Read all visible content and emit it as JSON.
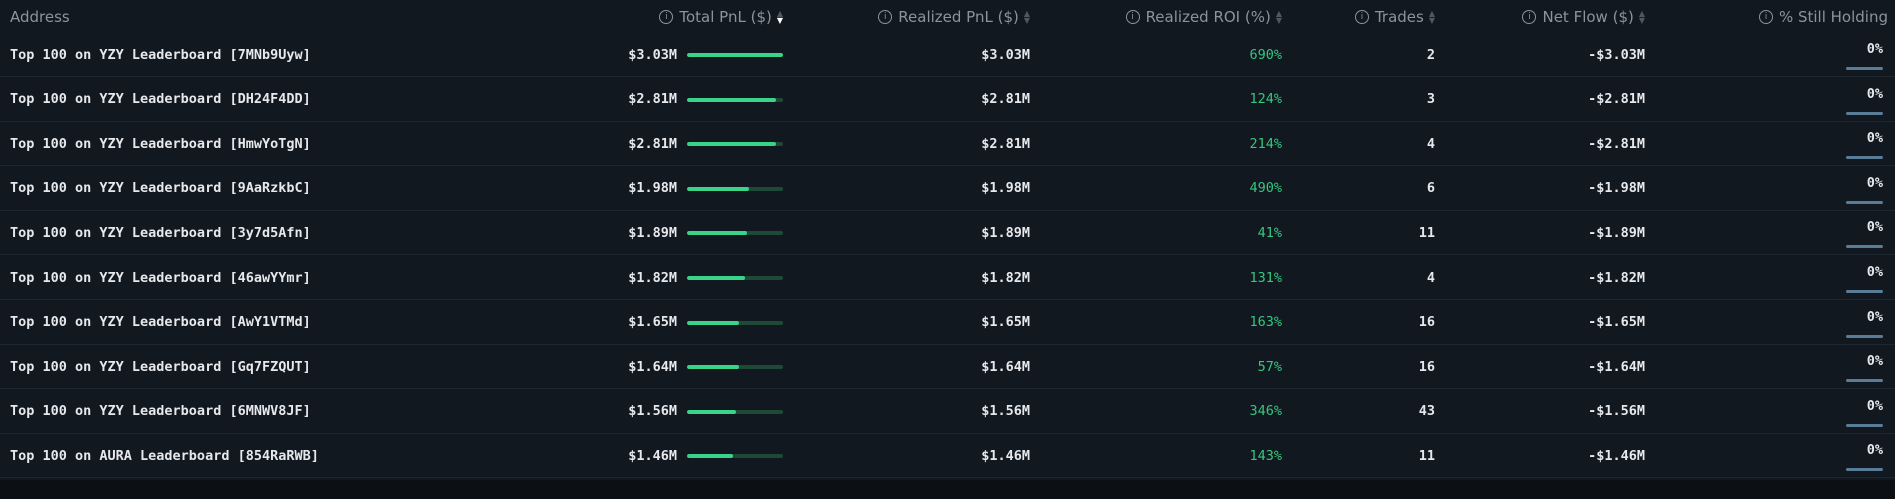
{
  "columns": {
    "address": "Address",
    "total_pnl": "Total PnL ($)",
    "realized_pnl": "Realized PnL ($)",
    "realized_roi": "Realized ROI (%)",
    "trades": "Trades",
    "net_flow": "Net Flow ($)",
    "still_holding": "% Still Holding"
  },
  "sort": {
    "column": "total_pnl",
    "direction": "desc"
  },
  "colors": {
    "bar_fill": "#3ad38a",
    "bar_track": "#1d4a36",
    "roi_text": "#35c77e",
    "holding_bar": "#5a7c96"
  },
  "rows": [
    {
      "address": "Top 100 on YZY Leaderboard [7MNb9Uyw]",
      "total_pnl": "$3.03M",
      "pnl_fraction": 1.0,
      "realized_pnl": "$3.03M",
      "roi": "690%",
      "trades": "2",
      "net_flow": "-$3.03M",
      "holding": "0%"
    },
    {
      "address": "Top 100 on YZY Leaderboard [DH24F4DD]",
      "total_pnl": "$2.81M",
      "pnl_fraction": 0.93,
      "realized_pnl": "$2.81M",
      "roi": "124%",
      "trades": "3",
      "net_flow": "-$2.81M",
      "holding": "0%"
    },
    {
      "address": "Top 100 on YZY Leaderboard [HmwYoTgN]",
      "total_pnl": "$2.81M",
      "pnl_fraction": 0.93,
      "realized_pnl": "$2.81M",
      "roi": "214%",
      "trades": "4",
      "net_flow": "-$2.81M",
      "holding": "0%"
    },
    {
      "address": "Top 100 on YZY Leaderboard [9AaRzkbC]",
      "total_pnl": "$1.98M",
      "pnl_fraction": 0.65,
      "realized_pnl": "$1.98M",
      "roi": "490%",
      "trades": "6",
      "net_flow": "-$1.98M",
      "holding": "0%"
    },
    {
      "address": "Top 100 on YZY Leaderboard [3y7d5Afn]",
      "total_pnl": "$1.89M",
      "pnl_fraction": 0.62,
      "realized_pnl": "$1.89M",
      "roi": "41%",
      "trades": "11",
      "net_flow": "-$1.89M",
      "holding": "0%"
    },
    {
      "address": "Top 100 on YZY Leaderboard [46awYYmr]",
      "total_pnl": "$1.82M",
      "pnl_fraction": 0.6,
      "realized_pnl": "$1.82M",
      "roi": "131%",
      "trades": "4",
      "net_flow": "-$1.82M",
      "holding": "0%"
    },
    {
      "address": "Top 100 on YZY Leaderboard [AwY1VTMd]",
      "total_pnl": "$1.65M",
      "pnl_fraction": 0.54,
      "realized_pnl": "$1.65M",
      "roi": "163%",
      "trades": "16",
      "net_flow": "-$1.65M",
      "holding": "0%"
    },
    {
      "address": "Top 100 on YZY Leaderboard [Gq7FZQUT]",
      "total_pnl": "$1.64M",
      "pnl_fraction": 0.54,
      "realized_pnl": "$1.64M",
      "roi": "57%",
      "trades": "16",
      "net_flow": "-$1.64M",
      "holding": "0%"
    },
    {
      "address": "Top 100 on YZY Leaderboard [6MNWV8JF]",
      "total_pnl": "$1.56M",
      "pnl_fraction": 0.51,
      "realized_pnl": "$1.56M",
      "roi": "346%",
      "trades": "43",
      "net_flow": "-$1.56M",
      "holding": "0%"
    },
    {
      "address": "Top 100 on AURA Leaderboard [854RaRWB]",
      "total_pnl": "$1.46M",
      "pnl_fraction": 0.48,
      "realized_pnl": "$1.46M",
      "roi": "143%",
      "trades": "11",
      "net_flow": "-$1.46M",
      "holding": "0%"
    }
  ]
}
